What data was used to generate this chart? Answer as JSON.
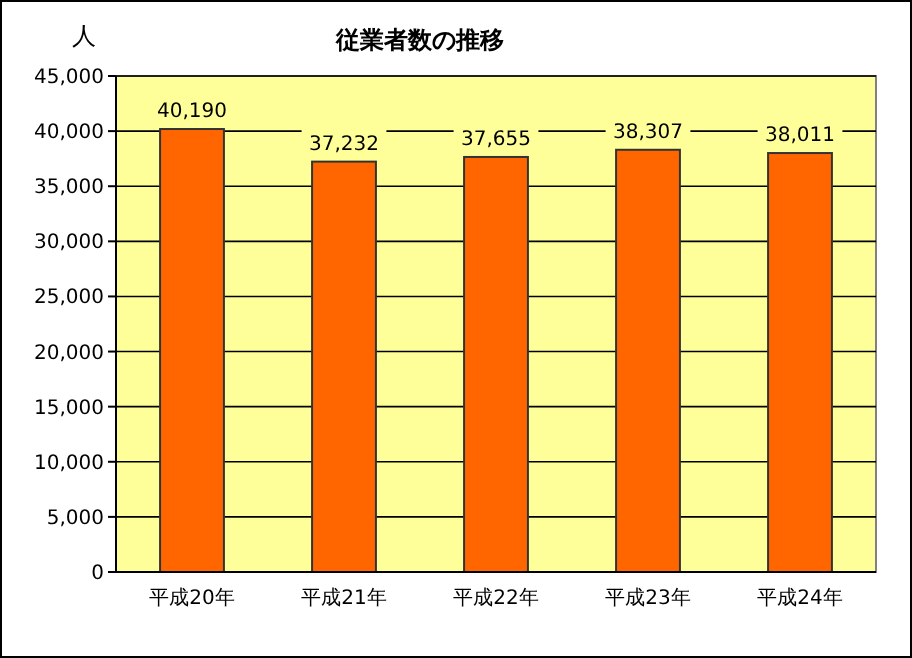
{
  "chart_data": {
    "type": "bar",
    "title": "従業者数の推移",
    "ylabel": "人",
    "categories": [
      "平成20年",
      "平成21年",
      "平成22年",
      "平成23年",
      "平成24年"
    ],
    "values": [
      40190,
      37232,
      37655,
      38307,
      38011
    ],
    "color": "#ff6600",
    "value_labels": [
      "40,190",
      "37,232",
      "37,655",
      "38,307",
      "38,011"
    ],
    "ylim": [
      0,
      45000
    ],
    "yticks": [
      0,
      {
        "value": 5000,
        "label": "5,000"
      },
      {
        "value": 10000,
        "label": "10,000"
      },
      {
        "value": 15000,
        "label": "15,000"
      },
      {
        "value": 20000,
        "label": "20,000"
      },
      {
        "value": 25000,
        "label": "25,000"
      },
      {
        "value": 30000,
        "label": "30,000"
      },
      {
        "value": 35000,
        "label": "35,000"
      },
      {
        "value": 40000,
        "label": "40,000"
      },
      {
        "value": 45000,
        "label": "45,000"
      }
    ],
    "grid": "y"
  }
}
